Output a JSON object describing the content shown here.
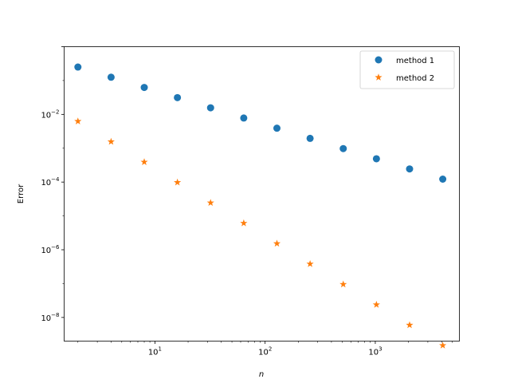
{
  "chart_data": {
    "type": "scatter",
    "title": "",
    "xlabel": "n",
    "ylabel": "Error",
    "xscale": "log",
    "yscale": "log",
    "xlim": [
      1.5,
      5800
    ],
    "ylim": [
      2e-09,
      1.0
    ],
    "grid": false,
    "legend_position": "upper right",
    "x_ticks": [
      {
        "value": 10,
        "base": "10",
        "exp": "1"
      },
      {
        "value": 100,
        "base": "10",
        "exp": "2"
      },
      {
        "value": 1000,
        "base": "10",
        "exp": "3"
      }
    ],
    "y_ticks": [
      {
        "value": 1e-08,
        "base": "10",
        "exp": "−8"
      },
      {
        "value": 1e-06,
        "base": "10",
        "exp": "−6"
      },
      {
        "value": 0.0001,
        "base": "10",
        "exp": "−4"
      },
      {
        "value": 0.01,
        "base": "10",
        "exp": "−2"
      }
    ],
    "x": [
      2,
      4,
      8,
      16,
      32,
      64,
      128,
      256,
      512,
      1024,
      2048,
      4096
    ],
    "series": [
      {
        "name": "method 1",
        "color": "#1f77b4",
        "marker": "circle",
        "values": [
          0.25,
          0.125,
          0.0625,
          0.03125,
          0.015625,
          0.0078125,
          0.00390625,
          0.001953125,
          0.0009765625,
          0.00048828125,
          0.000244140625,
          0.0001220703125
        ]
      },
      {
        "name": "method 2",
        "color": "#ff7f0e",
        "marker": "star",
        "values": [
          0.00625,
          0.0015625,
          0.000390625,
          9.765625e-05,
          2.44140625e-05,
          6.103515625e-06,
          1.52587890625e-06,
          3.814697265625e-07,
          9.5367431640625e-08,
          2.384185791015625e-08,
          5.960464477539063e-09,
          1.4901161193847655e-09
        ]
      }
    ]
  }
}
